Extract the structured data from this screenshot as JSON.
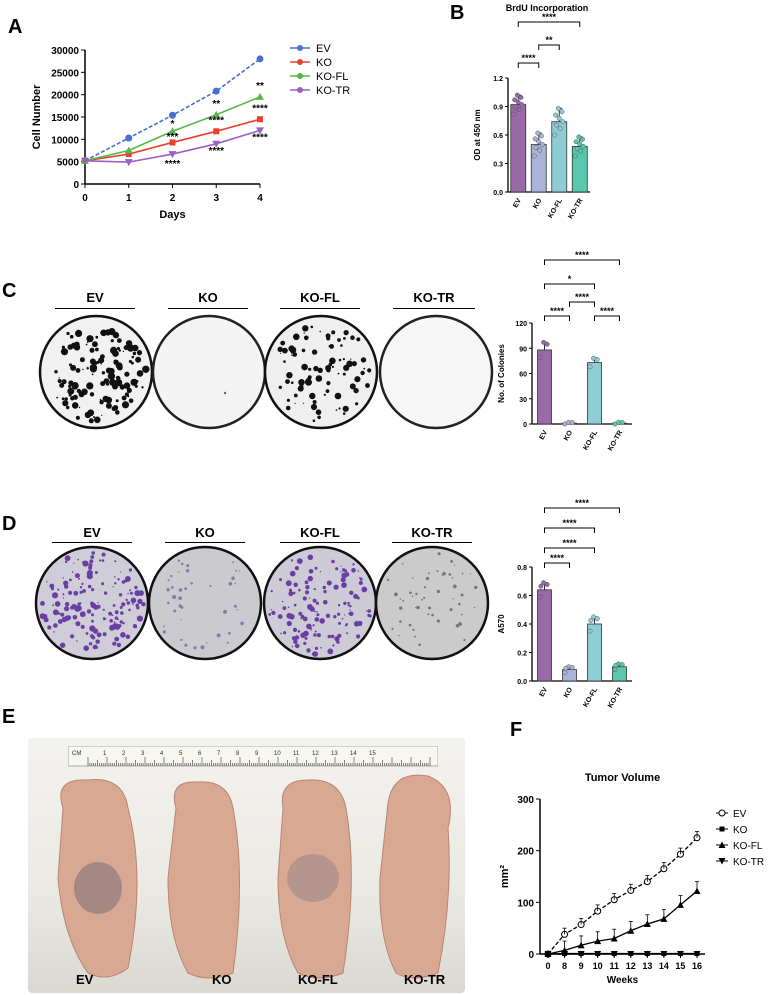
{
  "panels": {
    "a": "A",
    "b": "B",
    "c": "C",
    "d": "D",
    "e": "E",
    "f": "F"
  },
  "plates_c": [
    "EV",
    "KO",
    "KO-FL",
    "KO-TR"
  ],
  "plates_d": [
    "EV",
    "KO",
    "KO-FL",
    "KO-TR"
  ],
  "mice_labels": [
    "EV",
    "KO",
    "KO-FL",
    "KO-TR"
  ],
  "ruler_label": "CM",
  "ruler_numbers": [
    "1",
    "2",
    "3",
    "4",
    "5",
    "6",
    "7",
    "8",
    "9",
    "10",
    "11",
    "12",
    "13",
    "14",
    "15"
  ],
  "colors": {
    "ev": "#4a6fd1",
    "ko": "#e8402d",
    "kofl": "#55b948",
    "kotr": "#9c5fc4",
    "bar_ev": "#9a6aa8",
    "bar_ko": "#aab4d8",
    "bar_kofl": "#8ecdd6",
    "bar_kotr": "#58c8ae"
  },
  "chart_data": [
    {
      "type": "line",
      "panel": "A",
      "xlabel": "Days",
      "ylabel": "Cell Number",
      "x": [
        0,
        1,
        2,
        3,
        4
      ],
      "xlim": [
        0,
        4
      ],
      "ylim": [
        0,
        30000
      ],
      "yticks": [
        "0",
        "5000",
        "10000",
        "15000",
        "20000",
        "25000",
        "30000"
      ],
      "xticks": [
        "0",
        "1",
        "2",
        "3",
        "4"
      ],
      "legend_position": "top-right",
      "series": [
        {
          "name": "EV",
          "values": [
            5200,
            10300,
            15400,
            20800,
            28000
          ]
        },
        {
          "name": "KO",
          "values": [
            5200,
            6700,
            9300,
            11800,
            14500
          ]
        },
        {
          "name": "KO-FL",
          "values": [
            5200,
            7500,
            11800,
            15500,
            19500
          ]
        },
        {
          "name": "KO-TR",
          "values": [
            5200,
            4900,
            6700,
            9000,
            12000
          ]
        }
      ],
      "annotations": [
        "*",
        "***",
        "****",
        "**",
        "****",
        "****",
        "**",
        "****",
        "****"
      ]
    },
    {
      "type": "bar",
      "panel": "B",
      "title": "BrdU Incorporation",
      "ylabel": "OD at 450 nm",
      "categories": [
        "EV",
        "KO",
        "KO-FL",
        "KO-TR"
      ],
      "values": [
        0.92,
        0.5,
        0.74,
        0.48
      ],
      "errors": [
        0.1,
        0.12,
        0.14,
        0.1
      ],
      "ylim": [
        0,
        1.2
      ],
      "yticks": [
        "0.0",
        "0.3",
        "0.6",
        "0.9",
        "1.2"
      ],
      "significance": [
        "****",
        "**",
        "****"
      ]
    },
    {
      "type": "bar",
      "panel": "C",
      "ylabel": "No. of Colonies",
      "categories": [
        "EV",
        "KO",
        "KO-FL",
        "KO-TR"
      ],
      "values": [
        88,
        1,
        73,
        1
      ],
      "errors": [
        9,
        1,
        5,
        1
      ],
      "ylim": [
        0,
        120
      ],
      "yticks": [
        "0",
        "30",
        "60",
        "90",
        "120"
      ],
      "significance": [
        "****",
        "*",
        "****",
        "****",
        "****"
      ]
    },
    {
      "type": "bar",
      "panel": "D",
      "ylabel": "A570",
      "categories": [
        "EV",
        "KO",
        "KO-FL",
        "KO-TR"
      ],
      "values": [
        0.64,
        0.08,
        0.4,
        0.1
      ],
      "errors": [
        0.05,
        0.02,
        0.05,
        0.02
      ],
      "ylim": [
        0,
        0.8
      ],
      "yticks": [
        "0.0",
        "0.2",
        "0.4",
        "0.6",
        "0.8"
      ],
      "significance": [
        "****",
        "****",
        "****",
        "****"
      ]
    },
    {
      "type": "line",
      "panel": "F",
      "title": "Tumor Volume",
      "xlabel": "Weeks",
      "ylabel": "mm²",
      "x": [
        0,
        8,
        9,
        10,
        11,
        12,
        13,
        14,
        15,
        16
      ],
      "xticks": [
        "0",
        "8",
        "9",
        "10",
        "11",
        "12",
        "13",
        "14",
        "15",
        "16"
      ],
      "yticks": [
        "0",
        "100",
        "200",
        "300"
      ],
      "ylim": [
        0,
        300
      ],
      "legend_position": "right",
      "series": [
        {
          "name": "EV",
          "values": [
            0,
            38,
            57,
            83,
            105,
            123,
            140,
            165,
            193,
            225
          ]
        },
        {
          "name": "KO",
          "values": [
            0,
            1,
            1,
            1,
            1,
            1,
            1,
            1,
            1,
            1
          ]
        },
        {
          "name": "KO-FL",
          "values": [
            0,
            7,
            17,
            25,
            30,
            45,
            58,
            68,
            95,
            122
          ]
        },
        {
          "name": "KO-TR",
          "values": [
            0,
            0,
            0,
            0,
            0,
            0,
            0,
            0,
            0,
            0
          ]
        }
      ]
    }
  ]
}
